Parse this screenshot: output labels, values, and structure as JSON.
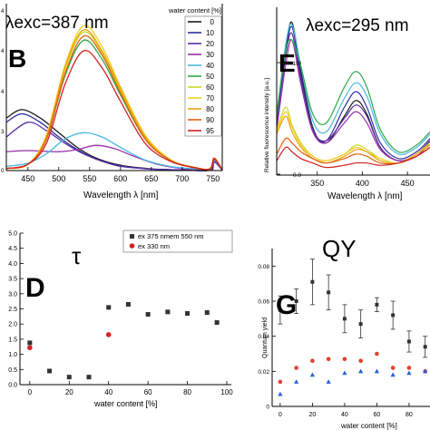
{
  "chart_data": [
    {
      "type": "line",
      "panel_label": "B",
      "annotation": "λexc=387 nm",
      "xlabel": "Wavelength λ [nm]",
      "xlim": [
        415,
        765
      ],
      "xticks": [
        "450",
        "500",
        "550",
        "600",
        "650",
        "700",
        "750"
      ],
      "xtick_values": [
        450,
        500,
        550,
        600,
        650,
        700,
        750
      ],
      "ylim": [
        0,
        7
      ],
      "legend_title": "water content [%]",
      "legend_placement": "top-right",
      "series": [
        {
          "name": "0",
          "color": "#1a1a1a",
          "peak_x": 440,
          "peak_y": 2.9,
          "x": [
            415,
            440,
            470,
            500,
            530,
            560,
            600,
            650,
            700,
            745,
            752,
            765
          ],
          "y": [
            2.5,
            2.9,
            2.5,
            1.8,
            1.1,
            0.6,
            0.25,
            0.08,
            0.03,
            0.02,
            0.45,
            0.02
          ]
        },
        {
          "name": "10",
          "color": "#2e2e9e",
          "peak_x": 440,
          "peak_y": 2.7,
          "x": [
            415,
            440,
            470,
            500,
            530,
            560,
            600,
            650,
            700,
            745,
            752,
            765
          ],
          "y": [
            2.3,
            2.7,
            2.3,
            1.6,
            1.0,
            0.55,
            0.22,
            0.07,
            0.03,
            0.02,
            0.4,
            0.02
          ]
        },
        {
          "name": "20",
          "color": "#5a2ea6",
          "peak_x": 450,
          "peak_y": 2.3,
          "x": [
            415,
            450,
            480,
            510,
            540,
            570,
            600,
            650,
            700,
            745,
            752,
            765
          ],
          "y": [
            1.6,
            2.3,
            1.9,
            1.3,
            0.8,
            0.45,
            0.2,
            0.07,
            0.03,
            0.02,
            0.4,
            0.02
          ]
        },
        {
          "name": "30",
          "color": "#9b2fa8",
          "peak_x": 560,
          "peak_y": 1.2,
          "x": [
            415,
            450,
            500,
            530,
            560,
            590,
            620,
            660,
            700,
            745,
            752,
            765
          ],
          "y": [
            0.9,
            0.95,
            0.9,
            1.0,
            1.2,
            1.05,
            0.7,
            0.3,
            0.1,
            0.05,
            0.45,
            0.03
          ]
        },
        {
          "name": "40",
          "color": "#47b8e0",
          "peak_x": 540,
          "peak_y": 1.8,
          "x": [
            415,
            450,
            480,
            510,
            540,
            570,
            600,
            640,
            680,
            720,
            745,
            752,
            765
          ],
          "y": [
            0.2,
            0.35,
            0.8,
            1.5,
            1.8,
            1.6,
            1.1,
            0.5,
            0.2,
            0.08,
            0.05,
            0.5,
            0.03
          ]
        },
        {
          "name": "50",
          "color": "#2ea84a",
          "peak_x": 540,
          "peak_y": 6.2,
          "x": [
            415,
            450,
            480,
            510,
            540,
            570,
            600,
            640,
            680,
            720,
            745,
            752,
            765
          ],
          "y": [
            0.1,
            0.3,
            1.5,
            4.5,
            6.2,
            5.3,
            3.6,
            1.5,
            0.5,
            0.15,
            0.08,
            0.6,
            0.03
          ]
        },
        {
          "name": "60",
          "color": "#c8d82a",
          "peak_x": 540,
          "peak_y": 6.6,
          "x": [
            415,
            450,
            480,
            510,
            540,
            570,
            600,
            640,
            680,
            720,
            745,
            752,
            765
          ],
          "y": [
            0.1,
            0.3,
            1.6,
            4.8,
            6.6,
            5.6,
            3.8,
            1.6,
            0.5,
            0.15,
            0.08,
            0.6,
            0.03
          ]
        },
        {
          "name": "70",
          "color": "#f0d020",
          "peak_x": 540,
          "peak_y": 6.9,
          "x": [
            415,
            450,
            480,
            510,
            540,
            570,
            600,
            640,
            680,
            720,
            745,
            752,
            765
          ],
          "y": [
            0.1,
            0.3,
            1.7,
            5.0,
            6.9,
            5.9,
            4.0,
            1.7,
            0.55,
            0.15,
            0.08,
            0.6,
            0.03
          ]
        },
        {
          "name": "80",
          "color": "#f0a010",
          "peak_x": 540,
          "peak_y": 6.7,
          "x": [
            415,
            450,
            480,
            510,
            540,
            570,
            600,
            640,
            680,
            720,
            745,
            752,
            765
          ],
          "y": [
            0.1,
            0.3,
            1.6,
            4.9,
            6.7,
            5.7,
            3.9,
            1.6,
            0.5,
            0.15,
            0.08,
            0.6,
            0.03
          ]
        },
        {
          "name": "90",
          "color": "#e06010",
          "peak_x": 540,
          "peak_y": 6.4,
          "x": [
            415,
            450,
            480,
            510,
            540,
            570,
            600,
            640,
            680,
            720,
            745,
            752,
            765
          ],
          "y": [
            0.1,
            0.3,
            1.5,
            4.6,
            6.4,
            5.5,
            3.7,
            1.5,
            0.5,
            0.15,
            0.08,
            0.6,
            0.03
          ]
        },
        {
          "name": "95",
          "color": "#d02020",
          "peak_x": 540,
          "peak_y": 5.7,
          "x": [
            415,
            450,
            480,
            510,
            540,
            570,
            600,
            640,
            680,
            720,
            745,
            752,
            765
          ],
          "y": [
            0.1,
            0.3,
            1.3,
            4.1,
            5.7,
            4.9,
            3.3,
            1.3,
            0.45,
            0.13,
            0.07,
            0.55,
            0.03
          ]
        }
      ],
      "y_tick_fragments": [
        "4",
        "4",
        "4",
        "3",
        "0"
      ]
    },
    {
      "type": "line",
      "panel_label": "E",
      "annotation": "λexc=295 nm",
      "xlabel": "Wavelength λ [nm]",
      "ylabel": "Relative fluorescence intensity [a.u.]",
      "xlim": [
        305,
        475
      ],
      "xticks": [
        "350",
        "400",
        "450"
      ],
      "xtick_values": [
        350,
        400,
        450
      ],
      "yticks": [
        "0.0",
        "5.0x10³"
      ],
      "ylim": [
        0,
        7.4
      ],
      "series": [
        {
          "name": "0",
          "color": "#1a1a1a",
          "x": [
            305,
            315,
            322,
            332,
            345,
            360,
            380,
            393,
            405,
            420,
            440,
            460,
            475
          ],
          "y": [
            2.5,
            5.6,
            6.8,
            4.6,
            2.1,
            1.4,
            2.6,
            3.3,
            2.7,
            1.2,
            0.6,
            0.9,
            1.5
          ]
        },
        {
          "name": "10",
          "color": "#2e2e9e",
          "x": [
            305,
            315,
            322,
            332,
            345,
            360,
            380,
            393,
            405,
            420,
            440,
            460,
            475
          ],
          "y": [
            2.3,
            5.4,
            6.6,
            4.4,
            2.0,
            1.5,
            3.0,
            3.7,
            3.0,
            1.4,
            0.7,
            1.0,
            1.6
          ]
        },
        {
          "name": "20",
          "color": "#5a2ea6",
          "x": [
            305,
            315,
            322,
            332,
            345,
            360,
            380,
            393,
            405,
            420,
            440,
            460,
            475
          ],
          "y": [
            2.2,
            5.3,
            6.3,
            4.2,
            2.0,
            1.5,
            2.5,
            3.1,
            2.6,
            1.2,
            0.6,
            0.9,
            1.5
          ]
        },
        {
          "name": "30",
          "color": "#9b2fa8",
          "x": [
            305,
            315,
            322,
            332,
            345,
            360,
            380,
            393,
            405,
            420,
            440,
            460,
            475
          ],
          "y": [
            2.0,
            4.9,
            6.0,
            4.0,
            1.9,
            1.4,
            2.3,
            2.8,
            2.3,
            1.1,
            0.6,
            0.8,
            1.4
          ]
        },
        {
          "name": "40",
          "color": "#47b8e0",
          "x": [
            305,
            315,
            322,
            332,
            345,
            360,
            380,
            393,
            405,
            420,
            440,
            460,
            475
          ],
          "y": [
            2.6,
            5.8,
            6.7,
            4.8,
            2.4,
            1.9,
            3.4,
            4.1,
            3.5,
            1.8,
            0.9,
            1.2,
            1.8
          ]
        },
        {
          "name": "50",
          "color": "#2ea84a",
          "x": [
            305,
            315,
            322,
            332,
            345,
            360,
            380,
            393,
            405,
            420,
            440,
            460,
            475
          ],
          "y": [
            2.7,
            5.5,
            6.0,
            4.8,
            2.7,
            2.3,
            3.9,
            4.6,
            3.9,
            2.0,
            1.0,
            1.3,
            1.9
          ]
        },
        {
          "name": "60",
          "color": "#c8d82a",
          "x": [
            305,
            315,
            322,
            332,
            345,
            360,
            380,
            393,
            405,
            420,
            440,
            460,
            475
          ],
          "y": [
            2.0,
            3.0,
            2.2,
            1.4,
            0.8,
            0.6,
            0.9,
            1.3,
            1.1,
            0.7,
            0.5,
            0.9,
            1.4
          ]
        },
        {
          "name": "70",
          "color": "#f0d020",
          "x": [
            305,
            315,
            322,
            332,
            345,
            360,
            380,
            393,
            405,
            420,
            440,
            460,
            475
          ],
          "y": [
            1.9,
            2.8,
            2.1,
            1.3,
            0.8,
            0.6,
            0.9,
            1.2,
            1.0,
            0.7,
            0.5,
            0.9,
            1.4
          ]
        },
        {
          "name": "80",
          "color": "#f0a010",
          "x": [
            305,
            315,
            322,
            332,
            345,
            360,
            380,
            393,
            405,
            420,
            440,
            460,
            475
          ],
          "y": [
            1.8,
            2.6,
            1.9,
            1.2,
            0.7,
            0.5,
            0.8,
            1.1,
            1.0,
            0.6,
            0.5,
            0.9,
            1.3
          ]
        },
        {
          "name": "90",
          "color": "#e06010",
          "x": [
            305,
            315,
            322,
            332,
            345,
            360,
            380,
            393,
            405,
            420,
            440,
            460,
            475
          ],
          "y": [
            0.9,
            1.6,
            1.4,
            1.0,
            0.7,
            0.5,
            0.7,
            0.9,
            0.8,
            0.5,
            0.5,
            0.8,
            1.2
          ]
        },
        {
          "name": "95",
          "color": "#d02020",
          "x": [
            305,
            315,
            322,
            332,
            345,
            360,
            380,
            393,
            405,
            420,
            440,
            460,
            475
          ],
          "y": [
            0.6,
            1.2,
            1.0,
            0.7,
            0.5,
            0.3,
            0.4,
            0.5,
            0.5,
            0.4,
            0.5,
            0.8,
            1.2
          ]
        }
      ]
    },
    {
      "type": "scatter",
      "panel_label": "D",
      "title": "τ",
      "xlabel": "water content [%]",
      "xlim": [
        -5,
        100
      ],
      "xticks": [
        "0",
        "20",
        "40",
        "60",
        "80",
        "100"
      ],
      "xtick_values": [
        0,
        20,
        40,
        60,
        80,
        100
      ],
      "ylim": [
        0,
        5.0
      ],
      "yticks": [
        "0.0",
        "0.5",
        "1.0",
        "1.5",
        "2.0",
        "2.5",
        "3.0",
        "3.5",
        "4.0",
        "4.5",
        "5.0"
      ],
      "ytick_values": [
        0,
        0.5,
        1,
        1.5,
        2,
        2.5,
        3,
        3.5,
        4,
        4.5,
        5
      ],
      "legend_placement": "top-right",
      "series": [
        {
          "name": "ex 375 nmem 550 nm",
          "marker": "square",
          "color": "#333333",
          "x": [
            0,
            10,
            20,
            30,
            40,
            50,
            60,
            70,
            80,
            90,
            95
          ],
          "y": [
            1.38,
            0.45,
            0.25,
            0.25,
            2.55,
            2.65,
            2.32,
            2.4,
            2.35,
            2.38,
            2.05
          ]
        },
        {
          "name": "ex 330 nm",
          "marker": "circle",
          "color": "#d62020",
          "x": [
            0,
            40
          ],
          "y": [
            1.22,
            1.65
          ]
        }
      ]
    },
    {
      "type": "scatter",
      "panel_label": "G",
      "title": "QY",
      "xlabel": "water content [%]",
      "ylabel": "Quantum yield",
      "xlim": [
        -5,
        93
      ],
      "xticks": [
        "0",
        "20",
        "40",
        "60",
        "80"
      ],
      "xtick_values": [
        0,
        20,
        40,
        60,
        80
      ],
      "ylim": [
        0,
        0.09
      ],
      "yticks": [
        "0",
        "0.02",
        "0.04",
        "0.06",
        "0.08"
      ],
      "ytick_values": [
        0,
        0.02,
        0.04,
        0.06,
        0.08
      ],
      "series": [
        {
          "marker": "square-errorbar",
          "color": "#333333",
          "x": [
            0,
            10,
            20,
            30,
            40,
            50,
            60,
            70,
            80,
            90
          ],
          "y": [
            0.055,
            0.06,
            0.071,
            0.065,
            0.05,
            0.047,
            0.058,
            0.052,
            0.037,
            0.034
          ],
          "err": [
            0.008,
            0.007,
            0.013,
            0.01,
            0.008,
            0.008,
            0.004,
            0.008,
            0.006,
            0.006
          ]
        },
        {
          "marker": "circle",
          "color": "#e04030",
          "x": [
            0,
            10,
            20,
            30,
            40,
            50,
            60,
            70,
            80,
            90
          ],
          "y": [
            0.014,
            0.022,
            0.026,
            0.027,
            0.027,
            0.026,
            0.03,
            0.022,
            0.022,
            0.02
          ]
        },
        {
          "marker": "triangle",
          "color": "#3060d0",
          "x": [
            0,
            10,
            20,
            30,
            40,
            50,
            60,
            70,
            80,
            90
          ],
          "y": [
            0.007,
            0.014,
            0.018,
            0.014,
            0.019,
            0.02,
            0.02,
            0.018,
            0.019,
            0.02
          ]
        }
      ]
    }
  ]
}
